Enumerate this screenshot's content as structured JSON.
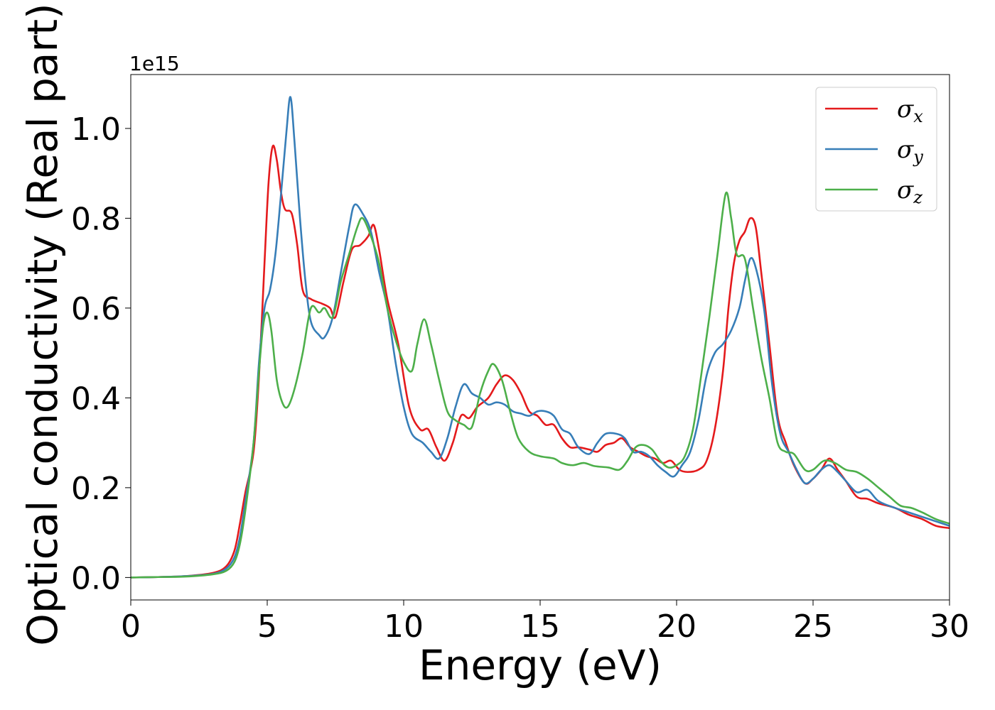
{
  "chart_data": {
    "type": "line",
    "title": "",
    "xlabel": "Energy (eV)",
    "ylabel": "Optical conductivity (Real part)",
    "y_offset_label": "1e15",
    "xlim": [
      0,
      30
    ],
    "ylim": [
      -0.05,
      1.12
    ],
    "x_ticks": [
      0,
      5,
      10,
      15,
      20,
      25,
      30
    ],
    "x_tick_labels": [
      "0",
      "5",
      "10",
      "15",
      "20",
      "25",
      "30"
    ],
    "y_ticks": [
      0.0,
      0.2,
      0.4,
      0.6,
      0.8,
      1.0
    ],
    "y_tick_labels": [
      "0.0",
      "0.2",
      "0.4",
      "0.6",
      "0.8",
      "1.0"
    ],
    "grid": false,
    "legend_position": "top-right",
    "series": [
      {
        "name": "σx",
        "legend_symbol": "σ",
        "legend_subscript": "x",
        "color": "#e41a1c",
        "points": [
          [
            0,
            0
          ],
          [
            1,
            0.001
          ],
          [
            2,
            0.003
          ],
          [
            3,
            0.01
          ],
          [
            3.5,
            0.025
          ],
          [
            3.8,
            0.06
          ],
          [
            4.0,
            0.12
          ],
          [
            4.2,
            0.19
          ],
          [
            4.5,
            0.28
          ],
          [
            4.7,
            0.45
          ],
          [
            4.9,
            0.7
          ],
          [
            5.05,
            0.88
          ],
          [
            5.2,
            0.96
          ],
          [
            5.35,
            0.93
          ],
          [
            5.5,
            0.86
          ],
          [
            5.65,
            0.82
          ],
          [
            5.9,
            0.81
          ],
          [
            6.1,
            0.74
          ],
          [
            6.3,
            0.64
          ],
          [
            6.6,
            0.62
          ],
          [
            7.0,
            0.61
          ],
          [
            7.3,
            0.6
          ],
          [
            7.5,
            0.58
          ],
          [
            7.8,
            0.66
          ],
          [
            8.1,
            0.73
          ],
          [
            8.4,
            0.74
          ],
          [
            8.7,
            0.76
          ],
          [
            8.9,
            0.785
          ],
          [
            9.1,
            0.73
          ],
          [
            9.4,
            0.62
          ],
          [
            9.8,
            0.52
          ],
          [
            10.2,
            0.38
          ],
          [
            10.6,
            0.33
          ],
          [
            10.9,
            0.33
          ],
          [
            11.2,
            0.29
          ],
          [
            11.5,
            0.26
          ],
          [
            11.8,
            0.3
          ],
          [
            12.1,
            0.36
          ],
          [
            12.4,
            0.355
          ],
          [
            12.7,
            0.38
          ],
          [
            13.1,
            0.4
          ],
          [
            13.4,
            0.43
          ],
          [
            13.7,
            0.45
          ],
          [
            14.0,
            0.44
          ],
          [
            14.3,
            0.41
          ],
          [
            14.6,
            0.37
          ],
          [
            14.9,
            0.36
          ],
          [
            15.2,
            0.34
          ],
          [
            15.5,
            0.34
          ],
          [
            15.8,
            0.31
          ],
          [
            16.1,
            0.29
          ],
          [
            16.4,
            0.29
          ],
          [
            16.8,
            0.285
          ],
          [
            17.1,
            0.28
          ],
          [
            17.4,
            0.295
          ],
          [
            17.7,
            0.3
          ],
          [
            18.0,
            0.31
          ],
          [
            18.3,
            0.29
          ],
          [
            18.6,
            0.28
          ],
          [
            18.9,
            0.27
          ],
          [
            19.2,
            0.265
          ],
          [
            19.5,
            0.255
          ],
          [
            19.8,
            0.26
          ],
          [
            20.1,
            0.24
          ],
          [
            20.4,
            0.235
          ],
          [
            20.8,
            0.24
          ],
          [
            21.1,
            0.26
          ],
          [
            21.4,
            0.33
          ],
          [
            21.7,
            0.46
          ],
          [
            21.9,
            0.6
          ],
          [
            22.1,
            0.7
          ],
          [
            22.3,
            0.75
          ],
          [
            22.5,
            0.77
          ],
          [
            22.7,
            0.8
          ],
          [
            22.9,
            0.78
          ],
          [
            23.1,
            0.68
          ],
          [
            23.4,
            0.52
          ],
          [
            23.7,
            0.36
          ],
          [
            24.0,
            0.3
          ],
          [
            24.3,
            0.25
          ],
          [
            24.7,
            0.21
          ],
          [
            25.0,
            0.22
          ],
          [
            25.3,
            0.24
          ],
          [
            25.6,
            0.265
          ],
          [
            25.9,
            0.24
          ],
          [
            26.2,
            0.215
          ],
          [
            26.6,
            0.18
          ],
          [
            27.0,
            0.175
          ],
          [
            27.4,
            0.165
          ],
          [
            28.0,
            0.155
          ],
          [
            28.5,
            0.14
          ],
          [
            29.0,
            0.13
          ],
          [
            29.5,
            0.115
          ],
          [
            30,
            0.11
          ]
        ]
      },
      {
        "name": "σy",
        "legend_symbol": "σ",
        "legend_subscript": "y",
        "color": "#377eb8",
        "points": [
          [
            0,
            0
          ],
          [
            1,
            0.001
          ],
          [
            2,
            0.003
          ],
          [
            3,
            0.008
          ],
          [
            3.5,
            0.02
          ],
          [
            3.8,
            0.045
          ],
          [
            4.0,
            0.09
          ],
          [
            4.2,
            0.17
          ],
          [
            4.5,
            0.3
          ],
          [
            4.7,
            0.48
          ],
          [
            4.9,
            0.6
          ],
          [
            5.1,
            0.64
          ],
          [
            5.3,
            0.72
          ],
          [
            5.5,
            0.85
          ],
          [
            5.7,
            0.99
          ],
          [
            5.85,
            1.07
          ],
          [
            6.0,
            0.97
          ],
          [
            6.2,
            0.8
          ],
          [
            6.4,
            0.66
          ],
          [
            6.6,
            0.57
          ],
          [
            6.9,
            0.54
          ],
          [
            7.1,
            0.535
          ],
          [
            7.4,
            0.58
          ],
          [
            7.7,
            0.68
          ],
          [
            8.0,
            0.78
          ],
          [
            8.2,
            0.83
          ],
          [
            8.5,
            0.81
          ],
          [
            8.8,
            0.77
          ],
          [
            9.1,
            0.68
          ],
          [
            9.4,
            0.6
          ],
          [
            9.7,
            0.48
          ],
          [
            10.0,
            0.38
          ],
          [
            10.3,
            0.32
          ],
          [
            10.7,
            0.3
          ],
          [
            11.0,
            0.28
          ],
          [
            11.3,
            0.265
          ],
          [
            11.6,
            0.31
          ],
          [
            11.9,
            0.38
          ],
          [
            12.2,
            0.43
          ],
          [
            12.5,
            0.41
          ],
          [
            12.8,
            0.4
          ],
          [
            13.1,
            0.385
          ],
          [
            13.4,
            0.39
          ],
          [
            13.7,
            0.385
          ],
          [
            14.0,
            0.37
          ],
          [
            14.3,
            0.365
          ],
          [
            14.6,
            0.36
          ],
          [
            14.9,
            0.37
          ],
          [
            15.2,
            0.37
          ],
          [
            15.5,
            0.36
          ],
          [
            15.8,
            0.33
          ],
          [
            16.1,
            0.32
          ],
          [
            16.4,
            0.29
          ],
          [
            16.8,
            0.275
          ],
          [
            17.1,
            0.3
          ],
          [
            17.4,
            0.32
          ],
          [
            17.8,
            0.32
          ],
          [
            18.1,
            0.31
          ],
          [
            18.4,
            0.28
          ],
          [
            18.7,
            0.28
          ],
          [
            19.0,
            0.27
          ],
          [
            19.3,
            0.25
          ],
          [
            19.6,
            0.235
          ],
          [
            19.9,
            0.225
          ],
          [
            20.2,
            0.25
          ],
          [
            20.5,
            0.28
          ],
          [
            20.8,
            0.35
          ],
          [
            21.1,
            0.45
          ],
          [
            21.4,
            0.5
          ],
          [
            21.7,
            0.52
          ],
          [
            22.0,
            0.55
          ],
          [
            22.3,
            0.6
          ],
          [
            22.5,
            0.66
          ],
          [
            22.7,
            0.71
          ],
          [
            22.9,
            0.69
          ],
          [
            23.2,
            0.6
          ],
          [
            23.5,
            0.43
          ],
          [
            23.8,
            0.32
          ],
          [
            24.1,
            0.28
          ],
          [
            24.4,
            0.24
          ],
          [
            24.7,
            0.21
          ],
          [
            25.0,
            0.22
          ],
          [
            25.3,
            0.24
          ],
          [
            25.6,
            0.25
          ],
          [
            25.9,
            0.235
          ],
          [
            26.2,
            0.215
          ],
          [
            26.6,
            0.19
          ],
          [
            27.0,
            0.195
          ],
          [
            27.4,
            0.17
          ],
          [
            28.0,
            0.155
          ],
          [
            28.5,
            0.145
          ],
          [
            29.0,
            0.135
          ],
          [
            29.5,
            0.125
          ],
          [
            30,
            0.115
          ]
        ]
      },
      {
        "name": "σz",
        "legend_symbol": "σ",
        "legend_subscript": "z",
        "color": "#4daf4a",
        "points": [
          [
            0,
            0
          ],
          [
            1,
            0.001
          ],
          [
            2,
            0.002
          ],
          [
            3,
            0.007
          ],
          [
            3.5,
            0.015
          ],
          [
            3.8,
            0.035
          ],
          [
            4.0,
            0.075
          ],
          [
            4.2,
            0.15
          ],
          [
            4.5,
            0.3
          ],
          [
            4.7,
            0.46
          ],
          [
            4.85,
            0.56
          ],
          [
            5.0,
            0.59
          ],
          [
            5.15,
            0.55
          ],
          [
            5.35,
            0.44
          ],
          [
            5.55,
            0.39
          ],
          [
            5.75,
            0.38
          ],
          [
            6.0,
            0.42
          ],
          [
            6.3,
            0.5
          ],
          [
            6.6,
            0.6
          ],
          [
            6.9,
            0.59
          ],
          [
            7.1,
            0.6
          ],
          [
            7.4,
            0.58
          ],
          [
            7.7,
            0.66
          ],
          [
            8.0,
            0.72
          ],
          [
            8.3,
            0.78
          ],
          [
            8.5,
            0.8
          ],
          [
            8.8,
            0.76
          ],
          [
            9.1,
            0.7
          ],
          [
            9.4,
            0.6
          ],
          [
            9.7,
            0.53
          ],
          [
            10.0,
            0.48
          ],
          [
            10.3,
            0.46
          ],
          [
            10.5,
            0.52
          ],
          [
            10.75,
            0.575
          ],
          [
            11.0,
            0.52
          ],
          [
            11.3,
            0.44
          ],
          [
            11.6,
            0.37
          ],
          [
            11.9,
            0.35
          ],
          [
            12.2,
            0.34
          ],
          [
            12.5,
            0.335
          ],
          [
            12.8,
            0.41
          ],
          [
            13.1,
            0.46
          ],
          [
            13.3,
            0.475
          ],
          [
            13.6,
            0.44
          ],
          [
            13.9,
            0.37
          ],
          [
            14.2,
            0.31
          ],
          [
            14.6,
            0.28
          ],
          [
            15.0,
            0.27
          ],
          [
            15.5,
            0.265
          ],
          [
            15.8,
            0.255
          ],
          [
            16.2,
            0.25
          ],
          [
            16.6,
            0.255
          ],
          [
            17.0,
            0.248
          ],
          [
            17.5,
            0.245
          ],
          [
            17.9,
            0.24
          ],
          [
            18.2,
            0.26
          ],
          [
            18.5,
            0.29
          ],
          [
            18.8,
            0.295
          ],
          [
            19.1,
            0.285
          ],
          [
            19.4,
            0.26
          ],
          [
            19.7,
            0.245
          ],
          [
            20.0,
            0.25
          ],
          [
            20.3,
            0.27
          ],
          [
            20.6,
            0.33
          ],
          [
            20.9,
            0.45
          ],
          [
            21.2,
            0.58
          ],
          [
            21.5,
            0.72
          ],
          [
            21.8,
            0.855
          ],
          [
            22.0,
            0.8
          ],
          [
            22.2,
            0.72
          ],
          [
            22.5,
            0.71
          ],
          [
            22.8,
            0.6
          ],
          [
            23.1,
            0.49
          ],
          [
            23.4,
            0.4
          ],
          [
            23.7,
            0.3
          ],
          [
            24.0,
            0.28
          ],
          [
            24.3,
            0.275
          ],
          [
            24.7,
            0.24
          ],
          [
            25.0,
            0.24
          ],
          [
            25.4,
            0.26
          ],
          [
            25.8,
            0.255
          ],
          [
            26.2,
            0.24
          ],
          [
            26.6,
            0.235
          ],
          [
            27.0,
            0.22
          ],
          [
            27.4,
            0.2
          ],
          [
            27.8,
            0.18
          ],
          [
            28.2,
            0.16
          ],
          [
            28.6,
            0.155
          ],
          [
            29.0,
            0.145
          ],
          [
            29.5,
            0.13
          ],
          [
            30,
            0.12
          ]
        ]
      }
    ]
  }
}
